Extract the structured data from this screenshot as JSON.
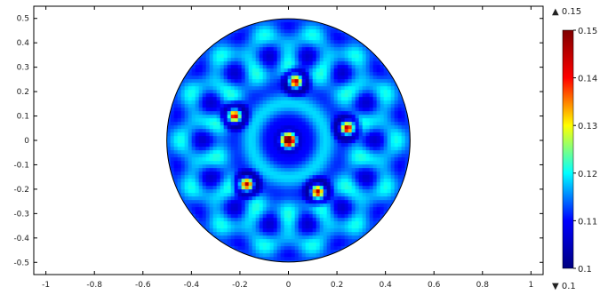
{
  "chart_data": {
    "type": "heatmap",
    "title": "",
    "xlabel": "",
    "ylabel": "",
    "xlim": [
      -1.05,
      1.05
    ],
    "ylim": [
      -0.55,
      0.55
    ],
    "x_ticks": [
      "-1",
      "-0.8",
      "-0.6",
      "-0.4",
      "-0.2",
      "0",
      "0.2",
      "0.4",
      "0.6",
      "0.8",
      "1"
    ],
    "x_tick_values": [
      -1,
      -0.8,
      -0.6,
      -0.4,
      -0.2,
      0,
      0.2,
      0.4,
      0.6,
      0.8,
      1
    ],
    "y_ticks": [
      "0.5",
      "0.4",
      "0.3",
      "0.2",
      "0.1",
      "0",
      "-0.1",
      "-0.2",
      "-0.3",
      "-0.4",
      "-0.5"
    ],
    "y_tick_values": [
      0.5,
      0.4,
      0.3,
      0.2,
      0.1,
      0,
      -0.1,
      -0.2,
      -0.3,
      -0.4,
      -0.5
    ],
    "domain": {
      "shape": "disk",
      "center": [
        0,
        0
      ],
      "radius": 0.5
    },
    "color_range": {
      "min": 0.1,
      "max": 0.15
    },
    "colorbar": {
      "max_marker": "▲ 0.15",
      "min_marker": "▼ 0.1",
      "tick_labels": [
        "0.15",
        "0.14",
        "0.13",
        "0.12",
        "0.11",
        "0.1"
      ],
      "tick_values": [
        0.15,
        0.14,
        0.13,
        0.12,
        0.11,
        0.1
      ],
      "colormap": [
        "#00007f",
        "#0000ff",
        "#00ffff",
        "#ffff00",
        "#ff0000",
        "#7f0000"
      ],
      "colormap_name": "rainbow"
    },
    "field_values": {
      "background": 0.115,
      "peak": 0.15,
      "trough": 0.103
    },
    "hotspots": [
      {
        "x": 0.0,
        "y": 0.0,
        "value": 0.15
      },
      {
        "x": 0.03,
        "y": 0.24,
        "value": 0.148
      },
      {
        "x": -0.22,
        "y": 0.1,
        "value": 0.147
      },
      {
        "x": 0.24,
        "y": 0.05,
        "value": 0.147
      },
      {
        "x": -0.17,
        "y": -0.18,
        "value": 0.147
      },
      {
        "x": 0.12,
        "y": -0.21,
        "value": 0.147
      }
    ],
    "grid": false,
    "legend": "colorbar-right"
  }
}
